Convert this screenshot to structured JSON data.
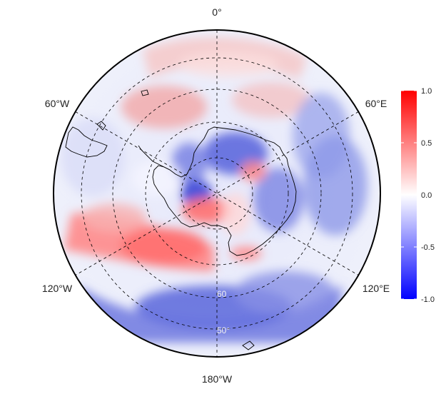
{
  "map": {
    "projection": "south-polar-stereographic",
    "longitude_labels": {
      "top": "0°",
      "bottom": "180°W",
      "upper_left": "60°W",
      "upper_right": "60°E",
      "lower_left": "120°W",
      "lower_right": "120°E"
    },
    "latitude_labels": [
      "60",
      "50°"
    ],
    "colors": {
      "negative": "#0000ff",
      "zero": "#ffffff",
      "positive": "#ff0000",
      "coastline": "#000000",
      "graticule": "#000000"
    },
    "anomaly_pattern": {
      "positive_regions": [
        "South Atlantic near 0°",
        "Drake Passage / Antarctic Peninsula",
        "Amundsen–Bellingshausen Sea",
        "Ross Sea coast"
      ],
      "negative_regions": [
        "Pacific sector 150°W–150°E",
        "Indian Ocean sector 60°E–120°E",
        "East Antarctic interior"
      ]
    }
  },
  "colorbar": {
    "min": -1.0,
    "max": 1.0,
    "tick_labels": [
      "1.0",
      "0.5",
      "0.0",
      "-0.5",
      "-1.0"
    ],
    "tick_values": [
      1.0,
      0.5,
      0.0,
      -0.5,
      -1.0
    ]
  }
}
